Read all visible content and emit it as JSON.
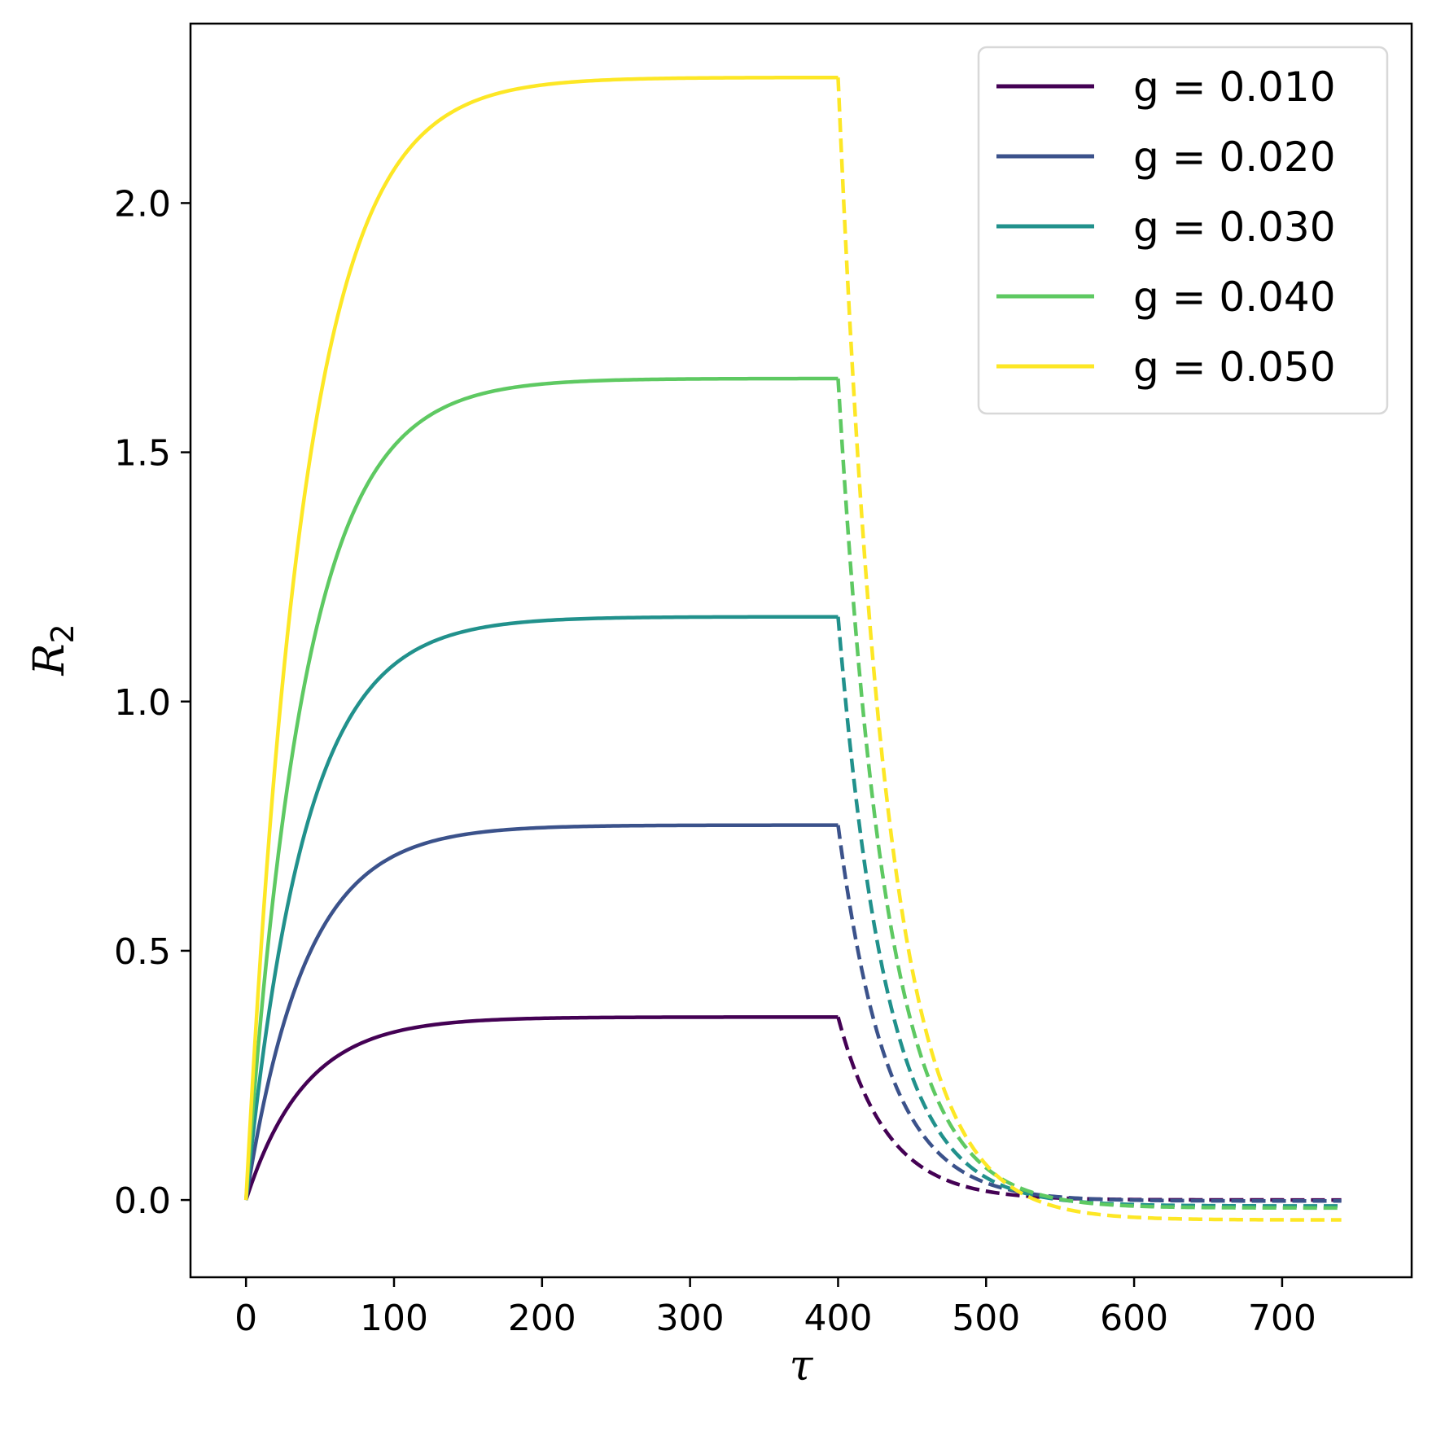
{
  "chart_data": {
    "type": "line",
    "xlabel": "τ",
    "ylabel_main": "R",
    "ylabel_sub": "2",
    "xlim": [
      -37.5,
      787.5
    ],
    "ylim": [
      -0.155,
      2.36
    ],
    "xticks": [
      0,
      100,
      200,
      300,
      400,
      500,
      600,
      700
    ],
    "yticks": [
      0.0,
      0.5,
      1.0,
      1.5,
      2.0
    ],
    "ytick_labels": [
      "0.0",
      "0.5",
      "1.0",
      "1.5",
      "2.0"
    ],
    "legend_position": "top-right",
    "grid": false,
    "switch_time": 400,
    "end_time": 740,
    "rise_time_constant": 40,
    "decay_time_constant": 33,
    "series": [
      {
        "name": "g = 0.010",
        "color": "#440154",
        "plateau": 0.367,
        "final": 0.0
      },
      {
        "name": "g = 0.020",
        "color": "#3b528b",
        "plateau": 0.752,
        "final": -0.002
      },
      {
        "name": "g = 0.030",
        "color": "#21918c",
        "plateau": 1.17,
        "final": -0.012
      },
      {
        "name": "g = 0.040",
        "color": "#5ec962",
        "plateau": 1.648,
        "final": -0.016
      },
      {
        "name": "g = 0.050",
        "color": "#fde725",
        "plateau": 2.252,
        "final": -0.04
      }
    ]
  }
}
